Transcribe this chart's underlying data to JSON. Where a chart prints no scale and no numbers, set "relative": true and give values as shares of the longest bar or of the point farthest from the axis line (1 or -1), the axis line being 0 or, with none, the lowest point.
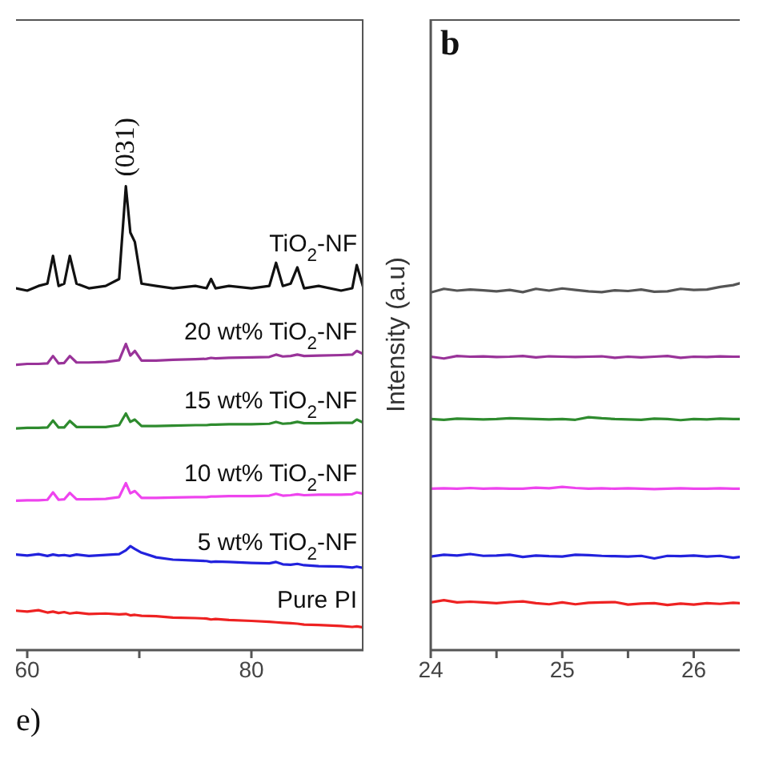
{
  "chart_data": [
    {
      "type": "line",
      "relative": true,
      "xlabel": "e)",
      "annotations": [
        {
          "text": "(031)",
          "x": 68.8,
          "y": 1.0
        }
      ],
      "x": [
        59,
        60,
        61,
        61.8,
        62.3,
        62.8,
        63.3,
        63.8,
        64.4,
        65.5,
        67,
        68.2,
        68.8,
        69.2,
        69.6,
        70.2,
        71.5,
        73,
        75,
        76,
        76.4,
        76.8,
        78,
        80,
        81.6,
        82.2,
        82.8,
        83.5,
        84.1,
        84.7,
        86,
        88,
        89,
        89.4,
        90
      ],
      "xlim": [
        59,
        90
      ],
      "xticks": [
        60,
        {
          "value": 70,
          "label": null
        },
        80
      ],
      "series": [
        {
          "name": "TiO$_{2}$-NF",
          "color": "#111111",
          "values": [
            0.78,
            0.775,
            0.785,
            0.79,
            0.85,
            0.785,
            0.79,
            0.85,
            0.79,
            0.78,
            0.785,
            0.8,
            1.0,
            0.9,
            0.88,
            0.79,
            0.785,
            0.78,
            0.785,
            0.78,
            0.8,
            0.78,
            0.785,
            0.78,
            0.785,
            0.835,
            0.785,
            0.79,
            0.825,
            0.78,
            0.785,
            0.775,
            0.78,
            0.83,
            0.78
          ]
        },
        {
          "name": "20 wt% TiO$_{2}$-NF",
          "color": "#993399",
          "values": [
            0.615,
            0.617,
            0.617,
            0.618,
            0.634,
            0.618,
            0.619,
            0.634,
            0.62,
            0.62,
            0.621,
            0.625,
            0.66,
            0.635,
            0.645,
            0.624,
            0.624,
            0.626,
            0.627,
            0.628,
            0.63,
            0.629,
            0.63,
            0.631,
            0.632,
            0.637,
            0.633,
            0.634,
            0.637,
            0.634,
            0.635,
            0.636,
            0.637,
            0.645,
            0.638
          ]
        },
        {
          "name": "15 wt% TiO$_{2}$-NF",
          "color": "#2e8b2e",
          "values": [
            0.478,
            0.479,
            0.479,
            0.48,
            0.495,
            0.48,
            0.48,
            0.494,
            0.481,
            0.481,
            0.481,
            0.485,
            0.51,
            0.492,
            0.497,
            0.483,
            0.483,
            0.484,
            0.485,
            0.485,
            0.486,
            0.486,
            0.487,
            0.487,
            0.488,
            0.492,
            0.488,
            0.489,
            0.492,
            0.489,
            0.489,
            0.49,
            0.49,
            0.497,
            0.49
          ]
        },
        {
          "name": "10 wt% TiO$_{2}$-NF",
          "color": "#ee44ee",
          "values": [
            0.322,
            0.323,
            0.323,
            0.324,
            0.34,
            0.324,
            0.325,
            0.339,
            0.325,
            0.325,
            0.326,
            0.33,
            0.36,
            0.338,
            0.343,
            0.328,
            0.328,
            0.329,
            0.33,
            0.33,
            0.331,
            0.331,
            0.332,
            0.332,
            0.333,
            0.337,
            0.333,
            0.334,
            0.336,
            0.334,
            0.335,
            0.335,
            0.336,
            0.34,
            0.337
          ]
        },
        {
          "name": "5 wt% TiO$_{2}$-NF",
          "color": "#2222dd",
          "values": [
            0.206,
            0.204,
            0.207,
            0.203,
            0.206,
            0.204,
            0.205,
            0.203,
            0.206,
            0.203,
            0.205,
            0.207,
            0.215,
            0.224,
            0.218,
            0.21,
            0.2,
            0.195,
            0.193,
            0.192,
            0.19,
            0.191,
            0.19,
            0.188,
            0.187,
            0.19,
            0.185,
            0.184,
            0.186,
            0.183,
            0.181,
            0.18,
            0.178,
            0.18,
            0.177
          ]
        },
        {
          "name": "Pure PI",
          "color": "#ee2222",
          "values": [
            0.085,
            0.083,
            0.086,
            0.081,
            0.083,
            0.08,
            0.082,
            0.079,
            0.081,
            0.078,
            0.079,
            0.077,
            0.078,
            0.075,
            0.076,
            0.074,
            0.073,
            0.07,
            0.069,
            0.068,
            0.066,
            0.067,
            0.065,
            0.063,
            0.061,
            0.06,
            0.059,
            0.058,
            0.057,
            0.055,
            0.054,
            0.052,
            0.05,
            0.051,
            0.049
          ]
        }
      ]
    },
    {
      "type": "line",
      "relative": true,
      "ylabel": "Intensity (a.u)",
      "annotations": [
        "b"
      ],
      "x": [
        24,
        24.1,
        24.2,
        24.3,
        24.4,
        24.5,
        24.6,
        24.7,
        24.8,
        24.9,
        25,
        25.1,
        25.2,
        25.3,
        25.4,
        25.5,
        25.6,
        25.7,
        25.8,
        25.9,
        26,
        26.1,
        26.2,
        26.3,
        26.35
      ],
      "xlim": [
        24,
        26.35
      ],
      "xticks": [
        24,
        {
          "value": 24.5,
          "label": null
        },
        25,
        {
          "value": 25.5,
          "label": null
        },
        26
      ],
      "series": [
        {
          "color": "#555555",
          "values": [
            0.975,
            0.985,
            0.98,
            0.983,
            0.981,
            0.978,
            0.982,
            0.976,
            0.985,
            0.98,
            0.986,
            0.982,
            0.978,
            0.976,
            0.981,
            0.979,
            0.983,
            0.977,
            0.978,
            0.985,
            0.982,
            0.983,
            0.99,
            0.995,
            1.0
          ]
        },
        {
          "color": "#993399",
          "values": [
            0.8,
            0.795,
            0.802,
            0.8,
            0.801,
            0.799,
            0.8,
            0.802,
            0.798,
            0.801,
            0.8,
            0.799,
            0.8,
            0.801,
            0.797,
            0.8,
            0.798,
            0.8,
            0.802,
            0.797,
            0.8,
            0.799,
            0.801,
            0.8,
            0.8
          ]
        },
        {
          "color": "#2e8b2e",
          "values": [
            0.63,
            0.628,
            0.631,
            0.63,
            0.629,
            0.63,
            0.632,
            0.631,
            0.63,
            0.629,
            0.63,
            0.628,
            0.635,
            0.632,
            0.63,
            0.629,
            0.628,
            0.631,
            0.63,
            0.627,
            0.63,
            0.629,
            0.631,
            0.63,
            0.63
          ]
        },
        {
          "color": "#ee44ee",
          "values": [
            0.44,
            0.441,
            0.44,
            0.442,
            0.44,
            0.441,
            0.44,
            0.44,
            0.443,
            0.441,
            0.445,
            0.442,
            0.44,
            0.441,
            0.44,
            0.441,
            0.44,
            0.439,
            0.44,
            0.441,
            0.44,
            0.44,
            0.441,
            0.44,
            0.44
          ]
        },
        {
          "color": "#2222dd",
          "values": [
            0.255,
            0.26,
            0.258,
            0.262,
            0.257,
            0.258,
            0.26,
            0.254,
            0.258,
            0.256,
            0.255,
            0.26,
            0.259,
            0.257,
            0.256,
            0.255,
            0.257,
            0.25,
            0.257,
            0.256,
            0.258,
            0.255,
            0.257,
            0.252,
            0.254
          ]
        },
        {
          "color": "#ee2222",
          "values": [
            0.13,
            0.136,
            0.13,
            0.132,
            0.13,
            0.128,
            0.131,
            0.133,
            0.128,
            0.125,
            0.13,
            0.125,
            0.129,
            0.13,
            0.131,
            0.124,
            0.127,
            0.128,
            0.123,
            0.127,
            0.124,
            0.128,
            0.126,
            0.129,
            0.128
          ]
        }
      ]
    }
  ]
}
